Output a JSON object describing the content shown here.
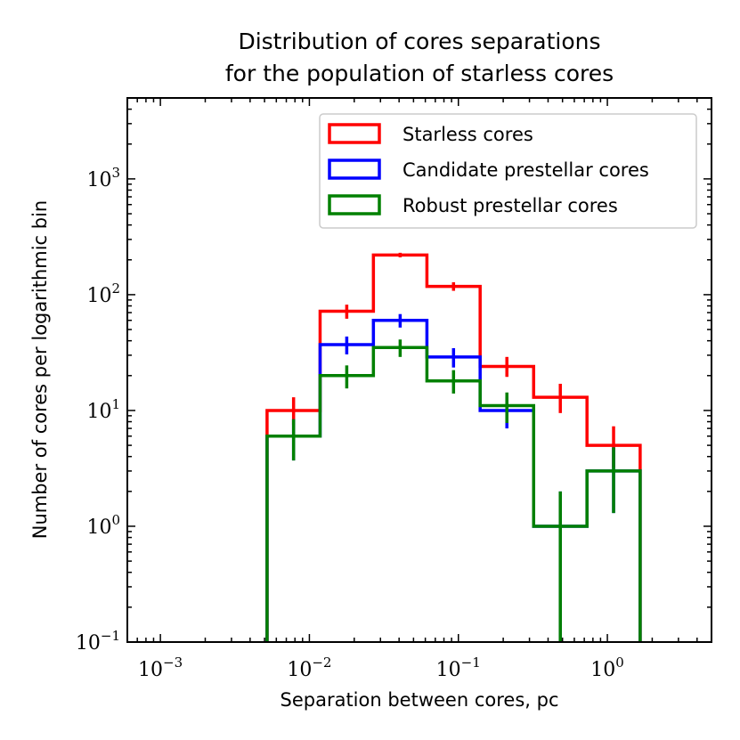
{
  "chart_data": {
    "type": "histogram",
    "title_lines": [
      "Distribution of cores separations",
      "for the population of starless cores"
    ],
    "xlabel": "Separation between cores, pc",
    "ylabel": "Number of cores per logarithmic bin",
    "xscale": "log",
    "yscale": "log",
    "xlim": [
      0.0006,
      5.0
    ],
    "ylim": [
      0.1,
      5000
    ],
    "x_ticks": [
      {
        "value": 0.001,
        "base": "10",
        "exp": "−3"
      },
      {
        "value": 0.01,
        "base": "10",
        "exp": "−2"
      },
      {
        "value": 0.1,
        "base": "10",
        "exp": "−1"
      },
      {
        "value": 1,
        "base": "10",
        "exp": "0"
      }
    ],
    "y_ticks": [
      {
        "value": 0.1,
        "base": "10",
        "exp": "−1"
      },
      {
        "value": 1,
        "base": "10",
        "exp": "0"
      },
      {
        "value": 10,
        "base": "10",
        "exp": "1"
      },
      {
        "value": 100,
        "base": "10",
        "exp": "2"
      },
      {
        "value": 1000,
        "base": "10",
        "exp": "3"
      }
    ],
    "bin_edges": [
      0.0052,
      0.0118,
      0.0269,
      0.0615,
      0.14,
      0.32,
      0.73,
      1.66
    ],
    "legend_position": "upper right",
    "series": [
      {
        "name": "Starless cores",
        "color": "#ff0000",
        "values": [
          10,
          72,
          220,
          118,
          24,
          13,
          5
        ],
        "err_low": [
          7.5,
          62,
          210,
          108,
          19.5,
          9.5,
          3.2
        ],
        "err_high": [
          13,
          82,
          230,
          128,
          29,
          17,
          7.3
        ]
      },
      {
        "name": "Candidate prestellar cores",
        "color": "#0000ff",
        "values": [
          6,
          37,
          60,
          29,
          10,
          1,
          3
        ],
        "err_low": [
          3.7,
          30.5,
          52,
          23.5,
          7,
          0.1,
          1.3
        ],
        "err_high": [
          8.4,
          43.5,
          68,
          34.5,
          13.2,
          2,
          4.8
        ]
      },
      {
        "name": "Robust prestellar cores",
        "color": "#008000",
        "values": [
          6,
          20,
          35,
          18,
          11,
          1,
          3
        ],
        "err_low": [
          3.7,
          15.5,
          29,
          14,
          7.8,
          0.1,
          1.3
        ],
        "err_high": [
          8.4,
          24.5,
          41,
          22.3,
          14.3,
          2,
          4.8
        ]
      }
    ]
  }
}
